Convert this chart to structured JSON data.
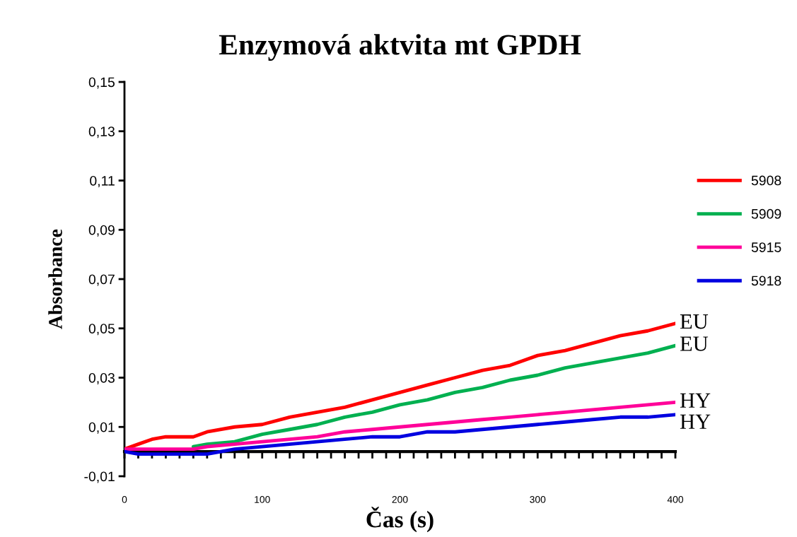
{
  "chart_data": {
    "type": "line",
    "title": "Enzymová aktvita mt GPDH",
    "xlabel": "Čas (s)",
    "ylabel": "Absorbance",
    "x": [
      0,
      10,
      20,
      30,
      40,
      50,
      60,
      80,
      100,
      120,
      140,
      160,
      180,
      200,
      220,
      240,
      260,
      280,
      300,
      320,
      340,
      360,
      380,
      400
    ],
    "series": [
      {
        "name": "5908",
        "color": "#ff0000",
        "values": [
          0.001,
          0.003,
          0.005,
          0.006,
          0.006,
          0.006,
          0.008,
          0.01,
          0.011,
          0.014,
          0.016,
          0.018,
          0.021,
          0.024,
          0.027,
          0.03,
          0.033,
          0.035,
          0.039,
          0.041,
          0.044,
          0.047,
          0.049,
          0.052
        ]
      },
      {
        "name": "5909",
        "color": "#00b050",
        "values": [
          null,
          null,
          null,
          null,
          null,
          0.002,
          0.003,
          0.004,
          0.007,
          0.009,
          0.011,
          0.014,
          0.016,
          0.019,
          0.021,
          0.024,
          0.026,
          0.029,
          0.031,
          0.034,
          0.036,
          0.038,
          0.04,
          0.043
        ]
      },
      {
        "name": "5915",
        "color": "#ff0099",
        "values": [
          0.001,
          0.001,
          0.001,
          0.001,
          0.001,
          0.001,
          0.002,
          0.003,
          0.004,
          0.005,
          0.006,
          0.008,
          0.009,
          0.01,
          0.011,
          0.012,
          0.013,
          0.014,
          0.015,
          0.016,
          0.017,
          0.018,
          0.019,
          0.02
        ]
      },
      {
        "name": "5918",
        "color": "#0000e0",
        "values": [
          0.0,
          -0.001,
          -0.001,
          -0.001,
          -0.001,
          -0.001,
          -0.001,
          0.001,
          0.002,
          0.003,
          0.004,
          0.005,
          0.006,
          0.006,
          0.008,
          0.008,
          0.009,
          0.01,
          0.011,
          0.012,
          0.013,
          0.014,
          0.014,
          0.015
        ]
      }
    ],
    "annotations": [
      "EU",
      "EU",
      "HY",
      "HY"
    ],
    "xlim": [
      0,
      400
    ],
    "xticks": [
      0,
      100,
      200,
      300,
      400
    ],
    "ylim": [
      -0.01,
      0.15
    ],
    "yticks": [
      {
        "value": -0.01,
        "label": "-0,01"
      },
      {
        "value": 0.01,
        "label": "0,01"
      },
      {
        "value": 0.03,
        "label": "0,03"
      },
      {
        "value": 0.05,
        "label": "0,05"
      },
      {
        "value": 0.07,
        "label": "0,07"
      },
      {
        "value": 0.09,
        "label": "0,09"
      },
      {
        "value": 0.11,
        "label": "0,11"
      },
      {
        "value": 0.13,
        "label": "0,13"
      },
      {
        "value": 0.15,
        "label": "0,15"
      }
    ],
    "grid": false,
    "legend": "right",
    "marker": "none",
    "line_style": "solid"
  }
}
